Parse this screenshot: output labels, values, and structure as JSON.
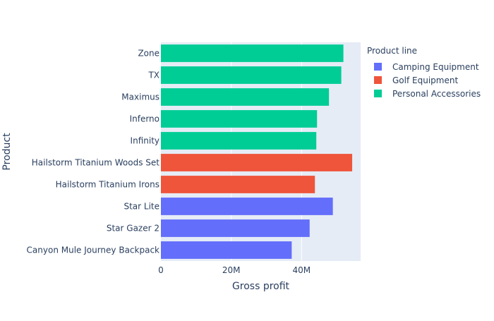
{
  "chart_data": {
    "type": "bar",
    "orientation": "horizontal",
    "xlabel": "Gross profit",
    "ylabel": "Product",
    "xlim": [
      0,
      56800000
    ],
    "xticks": [
      {
        "value": 0,
        "label": "0"
      },
      {
        "value": 20000000,
        "label": "20M"
      },
      {
        "value": 40000000,
        "label": "40M"
      }
    ],
    "grid": true,
    "legend_title": "Product line",
    "legend_position": "top-right",
    "series": [
      {
        "name": "Camping Equipment",
        "color": "#636efa"
      },
      {
        "name": "Golf Equipment",
        "color": "#EF553B"
      },
      {
        "name": "Personal Accessories",
        "color": "#00cc96"
      }
    ],
    "bars": [
      {
        "category": "Canyon Mule Journey Backpack",
        "value": 37200000,
        "series": 0
      },
      {
        "category": "Star Gazer 2",
        "value": 42300000,
        "series": 0
      },
      {
        "category": "Star Lite",
        "value": 48900000,
        "series": 0
      },
      {
        "category": "Hailstorm Titanium Irons",
        "value": 43800000,
        "series": 1
      },
      {
        "category": "Hailstorm Titanium Woods Set",
        "value": 54400000,
        "series": 1
      },
      {
        "category": "Infinity",
        "value": 44200000,
        "series": 2
      },
      {
        "category": "Inferno",
        "value": 44400000,
        "series": 2
      },
      {
        "category": "Maximus",
        "value": 47800000,
        "series": 2
      },
      {
        "category": "TX",
        "value": 51300000,
        "series": 2
      },
      {
        "category": "Zone",
        "value": 51900000,
        "series": 2
      }
    ]
  }
}
